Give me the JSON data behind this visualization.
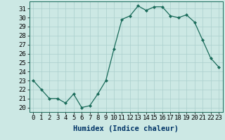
{
  "x": [
    0,
    1,
    2,
    3,
    4,
    5,
    6,
    7,
    8,
    9,
    10,
    11,
    12,
    13,
    14,
    15,
    16,
    17,
    18,
    19,
    20,
    21,
    22,
    23
  ],
  "y": [
    23.0,
    22.0,
    21.0,
    21.0,
    20.5,
    21.5,
    20.0,
    20.2,
    21.5,
    23.0,
    26.5,
    29.8,
    30.2,
    31.3,
    30.8,
    31.2,
    31.2,
    30.2,
    30.0,
    30.3,
    29.5,
    27.5,
    25.5,
    24.5
  ],
  "xlabel": "Humidex (Indice chaleur)",
  "ylim": [
    19.5,
    31.8
  ],
  "xlim": [
    -0.5,
    23.5
  ],
  "yticks": [
    20,
    21,
    22,
    23,
    24,
    25,
    26,
    27,
    28,
    29,
    30,
    31
  ],
  "xtick_labels": [
    "0",
    "1",
    "2",
    "3",
    "4",
    "5",
    "6",
    "7",
    "8",
    "9",
    "10",
    "11",
    "12",
    "13",
    "14",
    "15",
    "16",
    "17",
    "18",
    "19",
    "20",
    "21",
    "22",
    "23"
  ],
  "line_color": "#1a6b5a",
  "marker": "D",
  "marker_size": 2.0,
  "bg_color": "#cce8e4",
  "grid_color": "#aacfcc",
  "axis_label_color": "#003366",
  "tick_label_fontsize": 6.5,
  "xlabel_fontsize": 7.5
}
